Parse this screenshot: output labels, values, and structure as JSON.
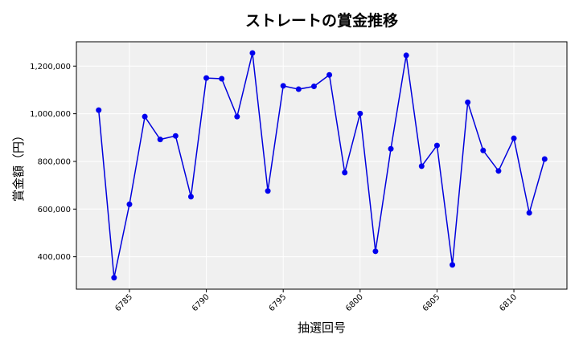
{
  "chart_data": {
    "type": "line",
    "title": "ストレートの賞金推移",
    "xlabel": "抽選回号",
    "ylabel": "賞金額（円）",
    "x": [
      6783,
      6784,
      6785,
      6786,
      6787,
      6788,
      6789,
      6790,
      6791,
      6792,
      6793,
      6794,
      6795,
      6796,
      6797,
      6798,
      6799,
      6800,
      6801,
      6802,
      6803,
      6804,
      6805,
      6806,
      6807,
      6808,
      6809,
      6810,
      6811,
      6812
    ],
    "series": [
      {
        "values": [
          1015000,
          312000,
          620000,
          988000,
          892000,
          907000,
          652000,
          1150000,
          1147000,
          988000,
          1255000,
          676000,
          1117000,
          1103000,
          1115000,
          1163000,
          753000,
          1001000,
          423000,
          853000,
          1245000,
          780000,
          867000,
          366000,
          1048000,
          846000,
          760000,
          897000,
          584000,
          810000
        ]
      }
    ],
    "xticks": [
      6785,
      6790,
      6795,
      6800,
      6805,
      6810
    ],
    "xtick_labels": [
      "6785",
      "6790",
      "6795",
      "6800",
      "6805",
      "6810"
    ],
    "yticks": [
      400000,
      600000,
      800000,
      1000000,
      1200000
    ],
    "ytick_labels": [
      "400,000",
      "600,000",
      "800,000",
      "1,000,000",
      "1,200,000"
    ],
    "xlim": [
      6781.55,
      6813.45
    ],
    "ylim": [
      264000,
      1302000
    ],
    "grid": true,
    "colors": {
      "line": "#0000dd",
      "marker": "#0000ee",
      "plot_bg": "#f0f0f0",
      "grid": "#ffffff"
    }
  }
}
